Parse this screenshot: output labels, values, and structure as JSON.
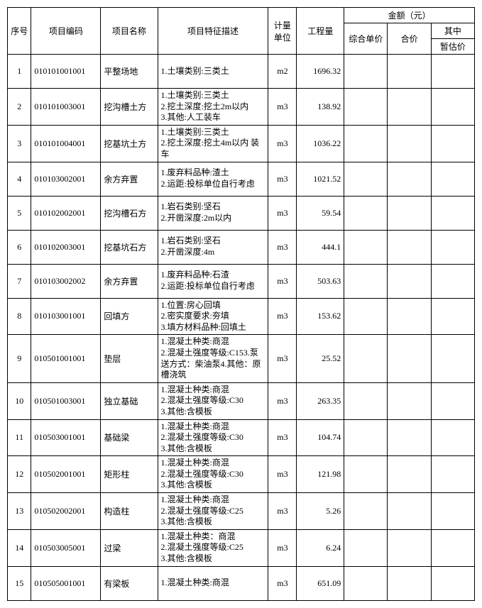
{
  "headers": {
    "seq": "序号",
    "code": "项目编码",
    "name": "项目名称",
    "desc": "项目特征描述",
    "unit": "计量单位",
    "qty": "工程量",
    "amount": "金额（元）",
    "uprice": "综合单价",
    "total": "合价",
    "sub": "其中",
    "sub2": "暂估价"
  },
  "rows": [
    {
      "seq": "1",
      "code": "010101001001",
      "name": "平整场地",
      "desc": "1.土壤类别:三类土",
      "unit": "m2",
      "qty": "1696.32"
    },
    {
      "seq": "2",
      "code": "010101003001",
      "name": "挖沟槽土方",
      "desc": "1.土壤类别:三类土\n2.挖土深度:挖土2m以内\n3.其他:人工装车",
      "unit": "m3",
      "qty": "138.92"
    },
    {
      "seq": "3",
      "code": "010101004001",
      "name": "挖基坑土方",
      "desc": "1.土壤类别:三类土\n2.挖土深度:挖土4m以内 装车",
      "unit": "m3",
      "qty": "1036.22"
    },
    {
      "seq": "4",
      "code": "010103002001",
      "name": "余方弃置",
      "desc": "1.废弃料品种:渣土\n2.运距:投标单位自行考虑",
      "unit": "m3",
      "qty": "1021.52"
    },
    {
      "seq": "5",
      "code": "010102002001",
      "name": "挖沟槽石方",
      "desc": "1.岩石类别:坚石\n2.开凿深度:2m以内",
      "unit": "m3",
      "qty": "59.54"
    },
    {
      "seq": "6",
      "code": "010102003001",
      "name": "挖基坑石方",
      "desc": "1.岩石类别:坚石\n2.开凿深度:4m",
      "unit": "m3",
      "qty": "444.1"
    },
    {
      "seq": "7",
      "code": "010103002002",
      "name": "余方弃置",
      "desc": "1.废弃料品种:石渣\n2.运距:投标单位自行考虑",
      "unit": "m3",
      "qty": "503.63"
    },
    {
      "seq": "8",
      "code": "010103001001",
      "name": "回填方",
      "desc": "1.位置:房心回填\n2.密实度要求:夯填\n3.填方材料品种:回填土",
      "unit": "m3",
      "qty": "153.62"
    },
    {
      "seq": "9",
      "code": "010501001001",
      "name": "垫层",
      "desc": "1.混凝土种类:商混\n2.混凝土强度等级:C153.泵送方式：柴油泵4.其他：原槽浇筑",
      "unit": "m3",
      "qty": "25.52"
    },
    {
      "seq": "10",
      "code": "010501003001",
      "name": "独立基础",
      "desc": "1.混凝土种类:商混\n2.混凝土强度等级:C30\n3.其他:含模板",
      "unit": "m3",
      "qty": "263.35"
    },
    {
      "seq": "11",
      "code": "010503001001",
      "name": "基础梁",
      "desc": "1.混凝土种类:商混\n2.混凝土强度等级:C30\n3.其他:含模板",
      "unit": "m3",
      "qty": "104.74"
    },
    {
      "seq": "12",
      "code": "010502001001",
      "name": "矩形柱",
      "desc": "1.混凝土种类:商混\n2.混凝土强度等级:C30\n3.其他:含模板",
      "unit": "m3",
      "qty": "121.98"
    },
    {
      "seq": "13",
      "code": "010502002001",
      "name": "构造柱",
      "desc": "1.混凝土种类:商混\n2.混凝土强度等级:C25\n3.其他:含模板",
      "unit": "m3",
      "qty": "5.26"
    },
    {
      "seq": "14",
      "code": "010503005001",
      "name": "过梁",
      "desc": "1.混凝土种类：商混\n2.混凝土强度等级:C25\n3.其他:含模板",
      "unit": "m3",
      "qty": "6.24"
    },
    {
      "seq": "15",
      "code": "010505001001",
      "name": "有梁板",
      "desc": "1.混凝土种类:商混",
      "unit": "m3",
      "qty": "651.09"
    }
  ]
}
